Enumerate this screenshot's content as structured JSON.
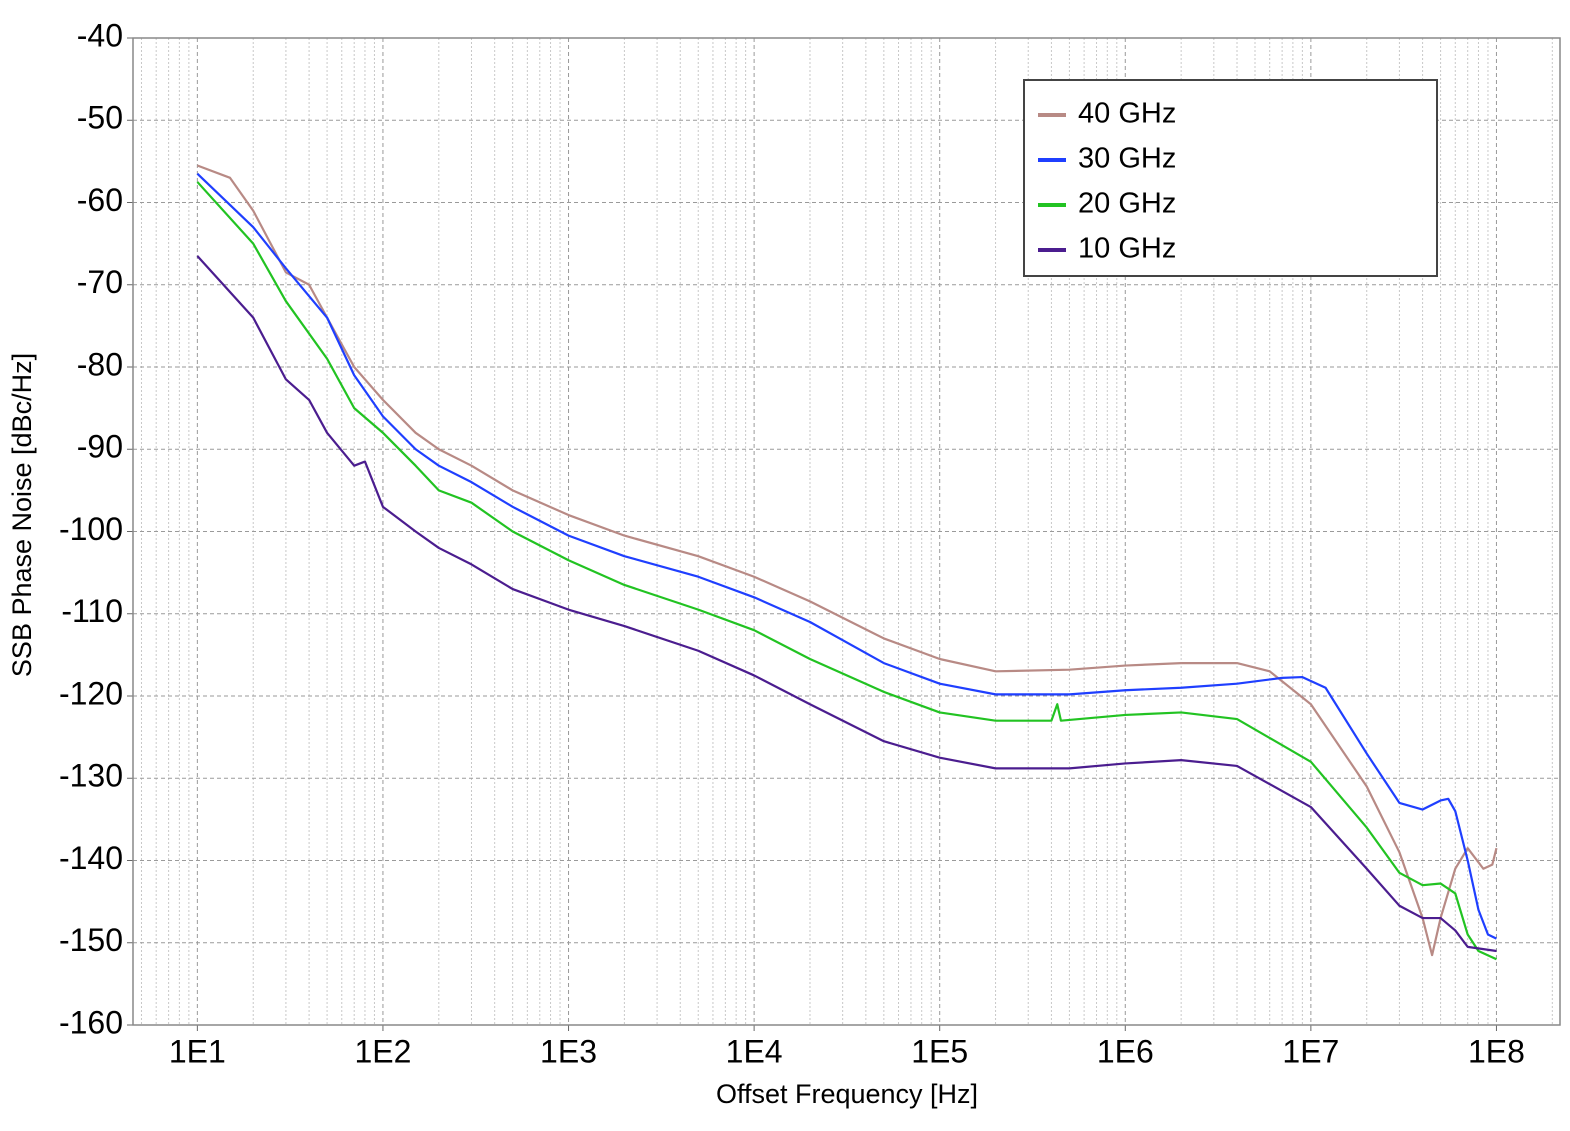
{
  "chart_data": {
    "type": "line",
    "x_label": "Offset Frequency [Hz]",
    "y_label": "SSB Phase Noise [dBc/Hz]",
    "xscale": "log",
    "grid": true,
    "minor_grid": true,
    "legend": "upper right",
    "xlim": [
      4.5,
      220000000
    ],
    "ylim": [
      -160,
      -40
    ],
    "xticks": [
      {
        "value": 10,
        "label": "1E1"
      },
      {
        "value": 100,
        "label": "1E2"
      },
      {
        "value": 1000,
        "label": "1E3"
      },
      {
        "value": 10000,
        "label": "1E4"
      },
      {
        "value": 100000,
        "label": "1E5"
      },
      {
        "value": 1000000,
        "label": "1E6"
      },
      {
        "value": 10000000,
        "label": "1E7"
      },
      {
        "value": 100000000,
        "label": "1E8"
      }
    ],
    "yticks": [
      -40,
      -50,
      -60,
      -70,
      -80,
      -90,
      -100,
      -110,
      -120,
      -130,
      -140,
      -150,
      -160
    ],
    "series": [
      {
        "name": "40 GHz",
        "color": "#b88a85",
        "x": [
          10,
          15,
          20,
          30,
          40,
          50,
          70,
          100,
          150,
          200,
          300,
          500,
          1000,
          2000,
          5000,
          10000,
          20000,
          50000,
          100000,
          200000,
          500000,
          1000000,
          2000000,
          4000000,
          6000000,
          10000000,
          20000000,
          30000000,
          40000000,
          45000000,
          50000000,
          60000000,
          70000000,
          85000000,
          95000000,
          100000000
        ],
        "values": [
          -55.5,
          -57,
          -61,
          -68.5,
          -70,
          -74,
          -80,
          -84,
          -88,
          -90,
          -92,
          -95,
          -98,
          -100.5,
          -103,
          -105.5,
          -108.5,
          -113,
          -115.5,
          -117,
          -116.8,
          -116.3,
          -116,
          -116,
          -117,
          -121,
          -131,
          -139,
          -147,
          -151.5,
          -147,
          -141,
          -138.5,
          -141,
          -140.5,
          -138.5
        ]
      },
      {
        "name": "30 GHz",
        "color": "#1f3fff",
        "x": [
          10,
          20,
          30,
          50,
          70,
          100,
          150,
          200,
          300,
          500,
          1000,
          2000,
          5000,
          10000,
          20000,
          50000,
          100000,
          200000,
          500000,
          1000000,
          2000000,
          4000000,
          7000000,
          9000000,
          12000000,
          20000000,
          30000000,
          40000000,
          50000000,
          55000000,
          60000000,
          70000000,
          80000000,
          90000000,
          100000000
        ],
        "values": [
          -56.5,
          -63,
          -68,
          -74,
          -81,
          -86,
          -90,
          -92,
          -94,
          -97,
          -100.5,
          -103,
          -105.5,
          -108,
          -111,
          -116,
          -118.5,
          -119.8,
          -119.8,
          -119.3,
          -119,
          -118.5,
          -117.8,
          -117.7,
          -119,
          -127,
          -133,
          -133.8,
          -132.7,
          -132.5,
          -134,
          -140,
          -146,
          -149,
          -149.5
        ]
      },
      {
        "name": "20 GHz",
        "color": "#22c322",
        "x": [
          10,
          20,
          30,
          50,
          70,
          100,
          150,
          200,
          300,
          500,
          1000,
          2000,
          5000,
          10000,
          20000,
          50000,
          100000,
          200000,
          400000,
          430000,
          450000,
          1000000,
          2000000,
          4000000,
          10000000,
          20000000,
          30000000,
          40000000,
          50000000,
          60000000,
          70000000,
          80000000,
          100000000
        ],
        "values": [
          -57.5,
          -65,
          -72,
          -79,
          -85,
          -88,
          -92,
          -95,
          -96.5,
          -100,
          -103.5,
          -106.5,
          -109.5,
          -112,
          -115.5,
          -119.5,
          -122,
          -123,
          -123,
          -121,
          -123,
          -122.3,
          -122,
          -122.8,
          -128,
          -136,
          -141.5,
          -143,
          -142.8,
          -144,
          -149,
          -151,
          -152
        ]
      },
      {
        "name": "10 GHz",
        "color": "#4b1d8f",
        "x": [
          10,
          20,
          30,
          40,
          50,
          70,
          80,
          100,
          150,
          200,
          300,
          500,
          1000,
          2000,
          5000,
          10000,
          20000,
          50000,
          100000,
          200000,
          500000,
          1000000,
          2000000,
          4000000,
          10000000,
          20000000,
          30000000,
          40000000,
          50000000,
          60000000,
          70000000,
          100000000
        ],
        "values": [
          -66.5,
          -74,
          -81.5,
          -84,
          -88,
          -92,
          -91.5,
          -97,
          -100,
          -102,
          -104,
          -107,
          -109.5,
          -111.5,
          -114.5,
          -117.5,
          -121,
          -125.5,
          -127.5,
          -128.8,
          -128.8,
          -128.2,
          -127.8,
          -128.5,
          -133.5,
          -141,
          -145.5,
          -147,
          -147,
          -148.5,
          -150.5,
          -151
        ]
      }
    ]
  }
}
